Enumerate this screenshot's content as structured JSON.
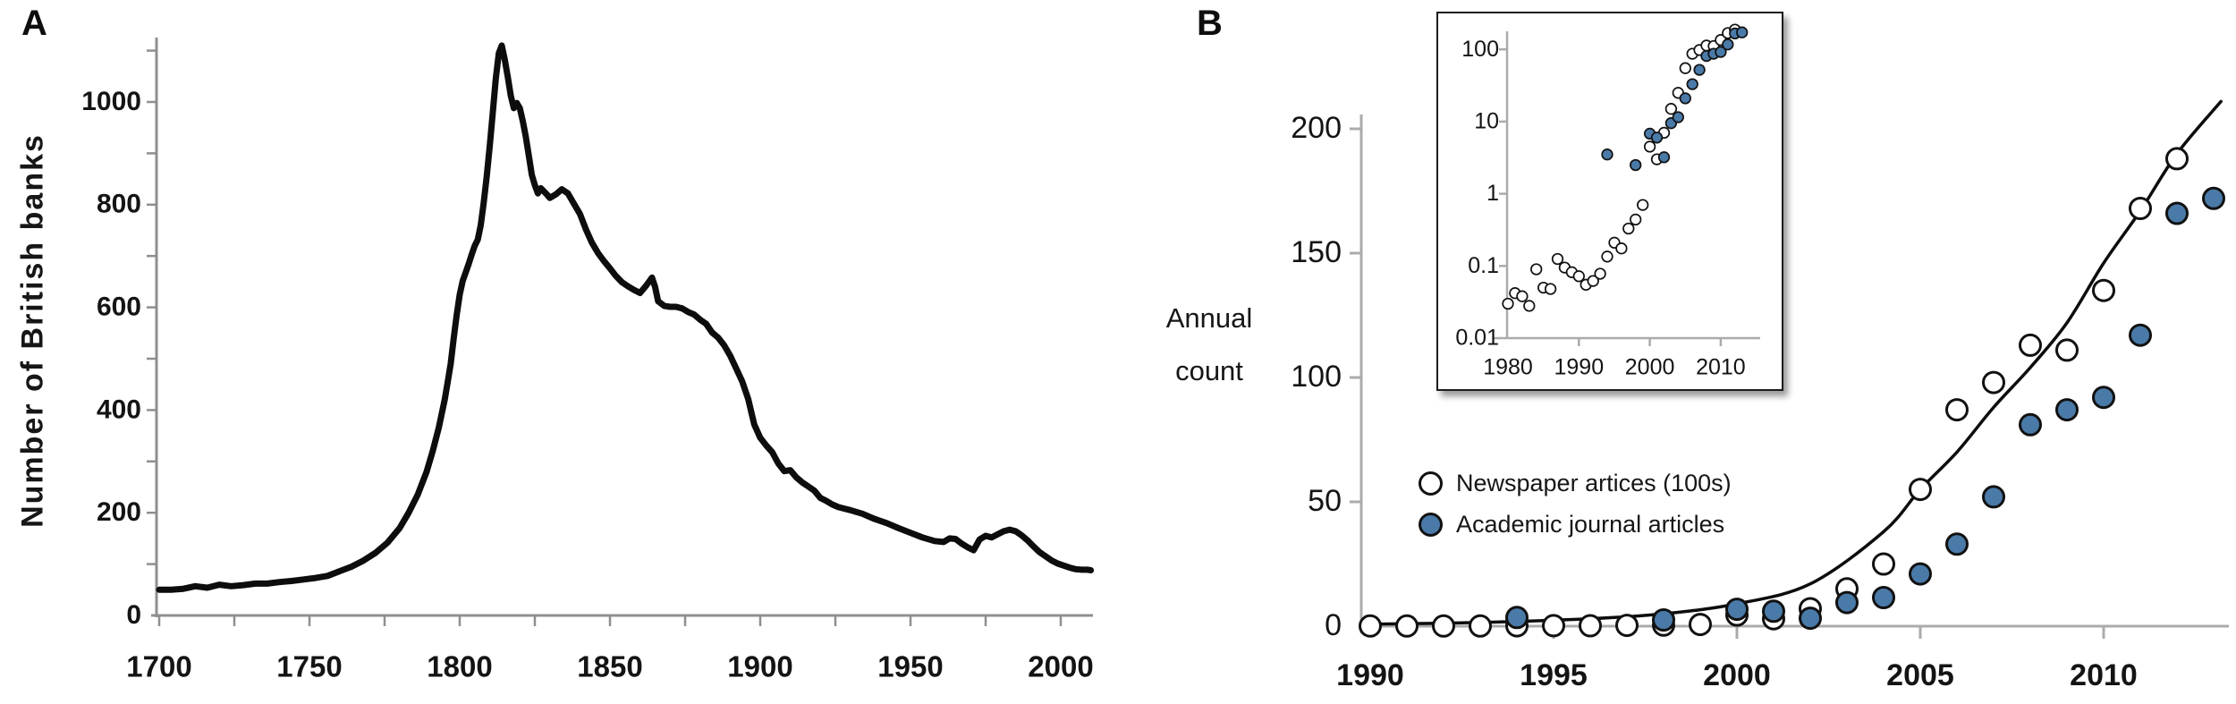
{
  "figure": {
    "panel_a_label": "A",
    "panel_b_label": "B"
  },
  "colors": {
    "academic_marker_fill": "#4a7aa8",
    "newspaper_marker_fill": "#ffffff",
    "marker_stroke": "#111111",
    "line_color": "#0d0d0d",
    "axis_color_a": "#8f8f8f",
    "axis_color_b": "#ababab",
    "text_color": "#141414"
  },
  "chart_data": [
    {
      "id": "british-banks",
      "panel": "A",
      "type": "line",
      "title": "",
      "xlabel": "",
      "ylabel": "Number of British banks",
      "xticks": [
        1700,
        1750,
        1800,
        1850,
        1900,
        1950,
        2000
      ],
      "x_minor_tick_step": 25,
      "yticks": [
        0,
        200,
        400,
        600,
        800,
        1000
      ],
      "y_minor_tick_step": 100,
      "xlim": [
        1700,
        2010
      ],
      "ylim": [
        0,
        1150
      ],
      "grid": false,
      "series": [
        {
          "name": "Number of British banks",
          "points": [
            [
              1700,
              50
            ],
            [
              1704,
              50
            ],
            [
              1708,
              52
            ],
            [
              1712,
              57
            ],
            [
              1716,
              54
            ],
            [
              1720,
              60
            ],
            [
              1724,
              57
            ],
            [
              1728,
              59
            ],
            [
              1732,
              62
            ],
            [
              1736,
              62
            ],
            [
              1740,
              65
            ],
            [
              1744,
              67
            ],
            [
              1748,
              70
            ],
            [
              1752,
              73
            ],
            [
              1756,
              77
            ],
            [
              1760,
              86
            ],
            [
              1764,
              95
            ],
            [
              1768,
              107
            ],
            [
              1772,
              122
            ],
            [
              1776,
              142
            ],
            [
              1780,
              170
            ],
            [
              1783,
              200
            ],
            [
              1786,
              235
            ],
            [
              1789,
              280
            ],
            [
              1791,
              320
            ],
            [
              1793,
              365
            ],
            [
              1795,
              420
            ],
            [
              1796,
              455
            ],
            [
              1797,
              490
            ],
            [
              1798,
              540
            ],
            [
              1799,
              585
            ],
            [
              1800,
              625
            ],
            [
              1801,
              652
            ],
            [
              1802,
              668
            ],
            [
              1803,
              685
            ],
            [
              1804,
              703
            ],
            [
              1805,
              720
            ],
            [
              1806,
              732
            ],
            [
              1807,
              760
            ],
            [
              1808,
              805
            ],
            [
              1809,
              855
            ],
            [
              1810,
              915
            ],
            [
              1811,
              980
            ],
            [
              1812,
              1045
            ],
            [
              1813,
              1095
            ],
            [
              1814,
              1110
            ],
            [
              1815,
              1082
            ],
            [
              1816,
              1048
            ],
            [
              1817,
              1012
            ],
            [
              1818,
              988
            ],
            [
              1819,
              998
            ],
            [
              1820,
              988
            ],
            [
              1821,
              962
            ],
            [
              1822,
              932
            ],
            [
              1823,
              895
            ],
            [
              1824,
              858
            ],
            [
              1825,
              838
            ],
            [
              1826,
              822
            ],
            [
              1827,
              832
            ],
            [
              1828,
              826
            ],
            [
              1829,
              820
            ],
            [
              1830,
              813
            ],
            [
              1832,
              820
            ],
            [
              1834,
              830
            ],
            [
              1836,
              822
            ],
            [
              1838,
              802
            ],
            [
              1840,
              782
            ],
            [
              1842,
              752
            ],
            [
              1844,
              726
            ],
            [
              1846,
              706
            ],
            [
              1848,
              690
            ],
            [
              1850,
              676
            ],
            [
              1852,
              661
            ],
            [
              1854,
              649
            ],
            [
              1856,
              641
            ],
            [
              1858,
              634
            ],
            [
              1860,
              628
            ],
            [
              1862,
              642
            ],
            [
              1864,
              658
            ],
            [
              1865,
              640
            ],
            [
              1866,
              612
            ],
            [
              1868,
              603
            ],
            [
              1870,
              601
            ],
            [
              1872,
              601
            ],
            [
              1874,
              598
            ],
            [
              1876,
              591
            ],
            [
              1878,
              586
            ],
            [
              1880,
              576
            ],
            [
              1882,
              568
            ],
            [
              1884,
              551
            ],
            [
              1886,
              541
            ],
            [
              1888,
              526
            ],
            [
              1890,
              506
            ],
            [
              1892,
              481
            ],
            [
              1894,
              456
            ],
            [
              1896,
              421
            ],
            [
              1898,
              372
            ],
            [
              1900,
              346
            ],
            [
              1902,
              331
            ],
            [
              1904,
              318
            ],
            [
              1906,
              296
            ],
            [
              1908,
              281
            ],
            [
              1910,
              283
            ],
            [
              1912,
              269
            ],
            [
              1914,
              259
            ],
            [
              1916,
              251
            ],
            [
              1918,
              243
            ],
            [
              1920,
              229
            ],
            [
              1922,
              223
            ],
            [
              1924,
              216
            ],
            [
              1926,
              211
            ],
            [
              1928,
              208
            ],
            [
              1930,
              205
            ],
            [
              1934,
              198
            ],
            [
              1938,
              188
            ],
            [
              1942,
              180
            ],
            [
              1946,
              170
            ],
            [
              1950,
              161
            ],
            [
              1954,
              152
            ],
            [
              1958,
              145
            ],
            [
              1961,
              143
            ],
            [
              1963,
              150
            ],
            [
              1965,
              149
            ],
            [
              1967,
              140
            ],
            [
              1969,
              133
            ],
            [
              1971,
              127
            ],
            [
              1973,
              148
            ],
            [
              1975,
              155
            ],
            [
              1977,
              152
            ],
            [
              1979,
              158
            ],
            [
              1981,
              164
            ],
            [
              1983,
              167
            ],
            [
              1985,
              164
            ],
            [
              1987,
              156
            ],
            [
              1989,
              146
            ],
            [
              1991,
              134
            ],
            [
              1993,
              123
            ],
            [
              1995,
              115
            ],
            [
              1997,
              107
            ],
            [
              1999,
              101
            ],
            [
              2001,
              97
            ],
            [
              2003,
              93
            ],
            [
              2005,
              90
            ],
            [
              2007,
              89
            ],
            [
              2009,
              89
            ],
            [
              2010,
              88
            ]
          ]
        }
      ]
    },
    {
      "id": "media-attention",
      "panel": "B",
      "type": "scatter",
      "title": "",
      "xlabel": "",
      "ylabel": "Annual count",
      "ylabel_line1": "Annual",
      "ylabel_line2": "count",
      "xticks": [
        1990,
        1995,
        2000,
        2005,
        2010
      ],
      "yticks": [
        0,
        50,
        100,
        150,
        200
      ],
      "xlim": [
        1990,
        2013.5
      ],
      "ylim": [
        0,
        215
      ],
      "grid": false,
      "legend_position": "left-middle",
      "legend": [
        {
          "label": "Newspaper artices (100s)",
          "marker": "open"
        },
        {
          "label": "Academic journal articles",
          "marker": "filled"
        }
      ],
      "series": [
        {
          "name": "Newspaper artices (100s)",
          "marker": "open",
          "points": [
            [
              1980,
              0.03
            ],
            [
              1981,
              0.042
            ],
            [
              1982,
              0.038
            ],
            [
              1983,
              0.028
            ],
            [
              1984,
              0.09
            ],
            [
              1985,
              0.05
            ],
            [
              1986,
              0.048
            ],
            [
              1987,
              0.125
            ],
            [
              1988,
              0.095
            ],
            [
              1989,
              0.082
            ],
            [
              1990,
              0.072
            ],
            [
              1991,
              0.055
            ],
            [
              1992,
              0.062
            ],
            [
              1993,
              0.078
            ],
            [
              1994,
              0.135
            ],
            [
              1995,
              0.21
            ],
            [
              1996,
              0.175
            ],
            [
              1997,
              0.33
            ],
            [
              1998,
              0.44
            ],
            [
              1999,
              0.7
            ],
            [
              2000,
              4.5
            ],
            [
              2001,
              3
            ],
            [
              2002,
              7
            ],
            [
              2003,
              15
            ],
            [
              2004,
              25
            ],
            [
              2005,
              55
            ],
            [
              2006,
              87
            ],
            [
              2007,
              98
            ],
            [
              2008,
              113
            ],
            [
              2009,
              111
            ],
            [
              2010,
              135
            ],
            [
              2011,
              168
            ],
            [
              2012,
              188
            ]
          ]
        },
        {
          "name": "Academic journal articles",
          "marker": "filled",
          "points": [
            [
              1994,
              3.5
            ],
            [
              1998,
              2.5
            ],
            [
              2000,
              6.8
            ],
            [
              2001,
              6
            ],
            [
              2002,
              3.2
            ],
            [
              2003,
              9.5
            ],
            [
              2004,
              11.5
            ],
            [
              2005,
              21
            ],
            [
              2006,
              33
            ],
            [
              2007,
              52
            ],
            [
              2008,
              81
            ],
            [
              2009,
              87
            ],
            [
              2010,
              92
            ],
            [
              2011,
              117
            ],
            [
              2012,
              166
            ],
            [
              2013,
              172
            ]
          ]
        }
      ],
      "trend_curve": [
        [
          1990,
          0.8
        ],
        [
          1993,
          1.5
        ],
        [
          1996,
          3
        ],
        [
          1998,
          5
        ],
        [
          2000,
          9
        ],
        [
          2002,
          17
        ],
        [
          2004,
          38
        ],
        [
          2005,
          55
        ],
        [
          2006,
          70
        ],
        [
          2007,
          88
        ],
        [
          2008,
          104
        ],
        [
          2009,
          122
        ],
        [
          2010,
          146
        ],
        [
          2011,
          167
        ],
        [
          2012,
          190
        ],
        [
          2013.2,
          211
        ]
      ]
    },
    {
      "id": "media-attention-inset",
      "panel": "B-inset",
      "type": "scatter",
      "y_scale": "log",
      "title": "",
      "xlabel": "",
      "ylabel": "",
      "xticks": [
        1980,
        1990,
        2000,
        2010
      ],
      "ytick_labels": [
        "100",
        "10",
        "1",
        "0.1",
        "0.01"
      ],
      "ytick_values": [
        100,
        10,
        1,
        0.1,
        0.01
      ],
      "xlim": [
        1977,
        2014.5
      ],
      "ylim": [
        0.01,
        300
      ],
      "grid": false,
      "note": "inset re-plots the same two series from panel B on a log y scale"
    }
  ]
}
